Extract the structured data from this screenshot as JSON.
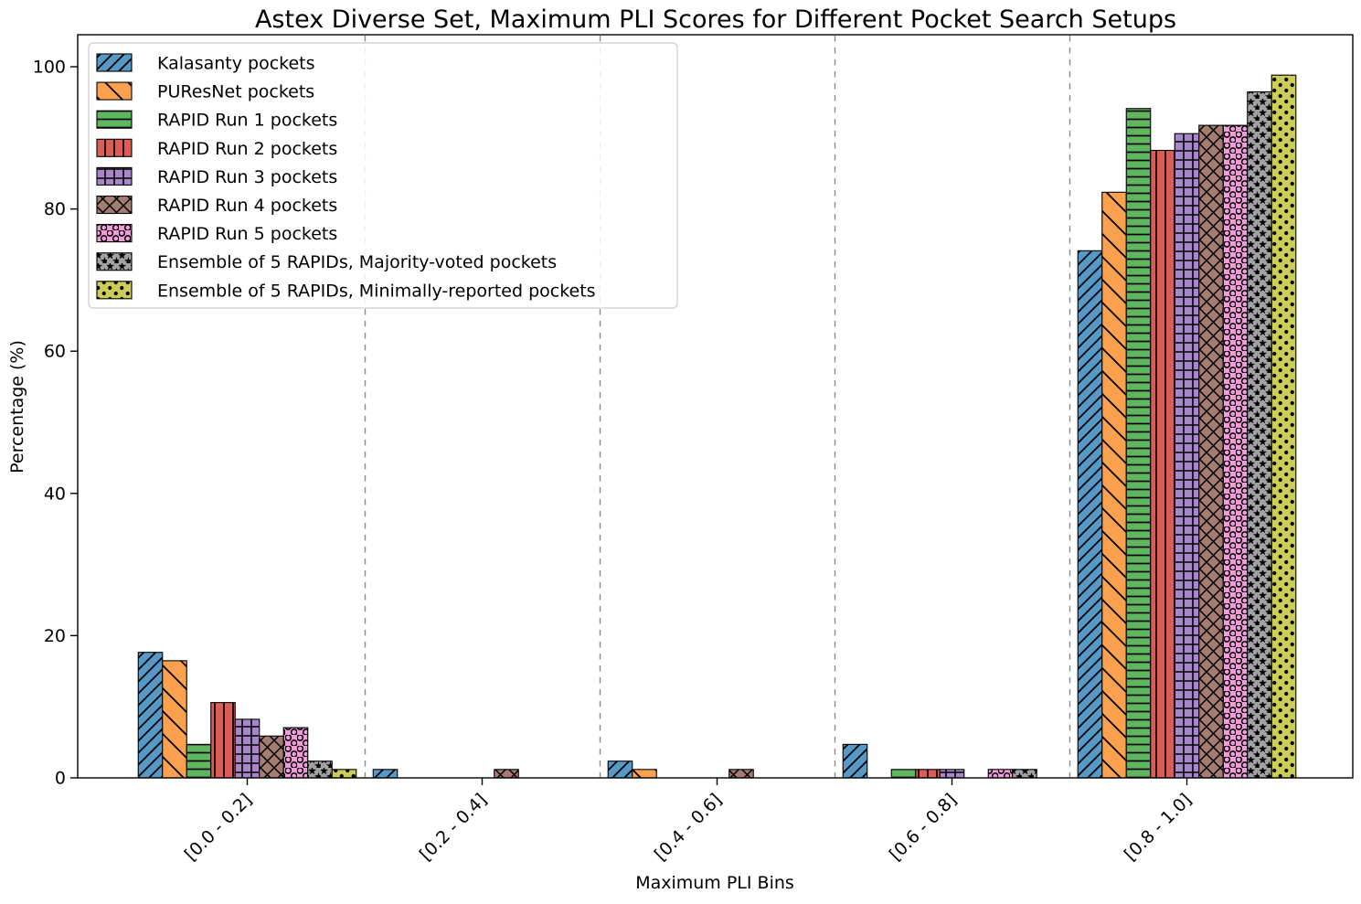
{
  "title": "Astex Diverse Set, Maximum PLI Scores for Different Pocket Search Setups",
  "chart_data": {
    "type": "bar",
    "title": "Astex Diverse Set, Maximum PLI Scores for Different Pocket Search Setups",
    "xlabel": "Maximum PLI Bins",
    "ylabel": "Percentage (%)",
    "categories": [
      "[0.0 - 0.2]",
      "[0.2 - 0.4]",
      "[0.4 - 0.6]",
      "[0.6 - 0.8]",
      "[0.8 - 1.0]"
    ],
    "yticks": [
      0,
      20,
      40,
      60,
      80,
      100
    ],
    "ylim": [
      0,
      104.5
    ],
    "grid": "vertical dashed separators between category groups",
    "legend_position": "upper left",
    "bar_edge_color": "#000000",
    "separator_color": "#8a8a8a",
    "series": [
      {
        "name": "Kalasanty pockets",
        "color": "#5799c6",
        "hatch": "//",
        "values": [
          17.65,
          1.18,
          2.35,
          4.71,
          74.12
        ]
      },
      {
        "name": "PUResNet pockets",
        "color": "#fba04e",
        "hatch": "\\",
        "values": [
          16.47,
          0,
          1.18,
          0,
          82.35
        ]
      },
      {
        "name": "RAPID Run 1 pockets",
        "color": "#5eb75e",
        "hatch": "-",
        "values": [
          4.71,
          0,
          0,
          1.18,
          94.12
        ]
      },
      {
        "name": "RAPID Run 2 pockets",
        "color": "#dc5c56",
        "hatch": "|",
        "values": [
          10.59,
          0,
          0,
          1.18,
          88.24
        ]
      },
      {
        "name": "RAPID Run 3 pockets",
        "color": "#a687c8",
        "hatch": "+",
        "values": [
          8.24,
          0,
          0,
          1.18,
          90.59
        ]
      },
      {
        "name": "RAPID Run 4 pockets",
        "color": "#a57c72",
        "hatch": "x",
        "values": [
          5.88,
          1.18,
          1.18,
          0,
          91.76
        ]
      },
      {
        "name": "RAPID Run 5 pockets",
        "color": "#f09cdb",
        "hatch": "o",
        "values": [
          7.06,
          0,
          0,
          1.18,
          91.76
        ]
      },
      {
        "name": "Ensemble of 5 RAPIDs, Majority-voted pockets",
        "color": "#a1a1a1",
        "hatch": "*",
        "values": [
          2.35,
          0,
          0,
          1.18,
          96.47
        ]
      },
      {
        "name": "Ensemble of 5 RAPIDs, Minimally-reported pockets",
        "color": "#cccd55",
        "hatch": ".",
        "values": [
          1.18,
          0,
          0,
          0,
          98.82
        ]
      }
    ]
  }
}
